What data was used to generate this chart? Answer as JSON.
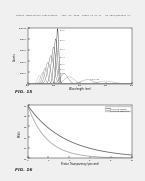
{
  "header_text": "Patent Application Publication   Aug. 12, 2010  Sheet 13 of 17   US 2010/0207047 A1",
  "fig15_label": "FIG. 15",
  "fig16_label": "FIG. 16",
  "fig15_xlabel": "Wavelength (nm)",
  "fig15_ylabel": "Counts",
  "fig15_xlim": [
    300,
    700
  ],
  "fig15_ylim": [
    0,
    100000
  ],
  "fig16_xlabel": "Proton Transparency (percent)",
  "fig16_ylabel": "MeV/c",
  "fig16_xlim": [
    0,
    10
  ],
  "fig16_ylim": [
    0,
    1.0
  ],
  "bg_color": "#f0f0f0",
  "plot_bg": "#ffffff",
  "peaks": [
    [
      415,
      5,
      98000,
      "#333333"
    ],
    [
      408,
      7,
      80000,
      "#555555"
    ],
    [
      400,
      9,
      65000,
      "#666666"
    ],
    [
      390,
      11,
      50000,
      "#777777"
    ],
    [
      378,
      10,
      38000,
      "#888888"
    ],
    [
      368,
      9,
      28000,
      "#999999"
    ],
    [
      358,
      8,
      20000,
      "#aaaaaa"
    ],
    [
      440,
      14,
      18000,
      "#888888"
    ],
    [
      460,
      18,
      12000,
      "#aaaaaa"
    ],
    [
      530,
      22,
      7000,
      "#999999"
    ],
    [
      600,
      28,
      4500,
      "#aaaaaa"
    ],
    [
      345,
      7,
      14000,
      "#bbbbbb"
    ]
  ],
  "peak_labels": [
    [
      415,
      98000,
      "400,1"
    ],
    [
      408,
      80000,
      "400,2"
    ],
    [
      400,
      65000,
      "400,3"
    ],
    [
      390,
      50000,
      "400,4"
    ],
    [
      378,
      38000,
      "300,1"
    ],
    [
      368,
      28000,
      "300,2"
    ],
    [
      358,
      20000,
      "300,3"
    ],
    [
      600,
      4500,
      "Unidentified"
    ]
  ],
  "decay1_rate": 0.28,
  "decay2_rate": 0.55,
  "decay1_color": "#666666",
  "decay2_color": "#aaaaaa",
  "decay1_label": "LuAG:Ce crystal",
  "decay2_label": "LuAG:Ce ceramics"
}
